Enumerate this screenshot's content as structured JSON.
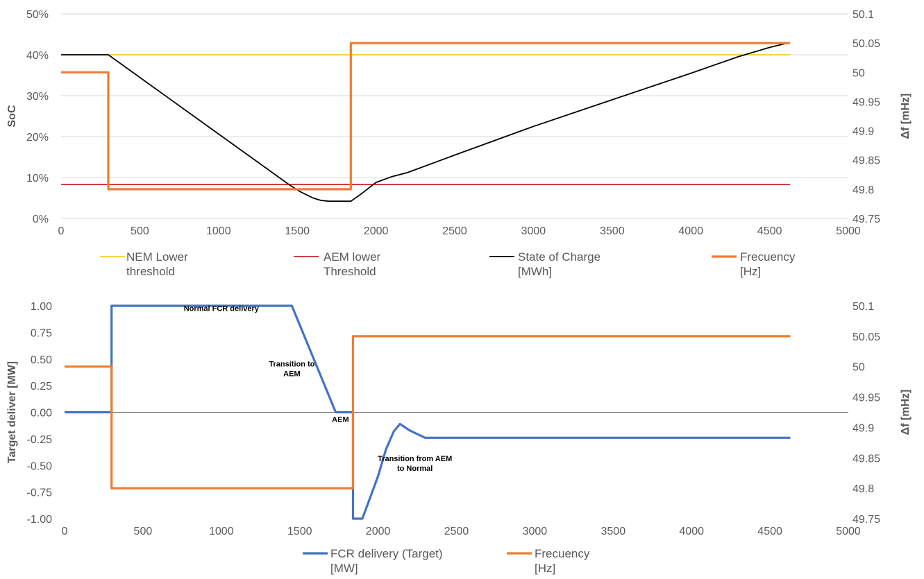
{
  "chart_data": [
    {
      "type": "line",
      "title": "",
      "ylabel": "SoC",
      "y2label": "Δf [mHz]",
      "xlim": [
        0,
        5000
      ],
      "xticks": [
        "0",
        "500",
        "1000",
        "1500",
        "2000",
        "2500",
        "3000",
        "3500",
        "4000",
        "4500",
        "5000"
      ],
      "ylim": [
        0,
        50
      ],
      "yticks": [
        "0%",
        "10%",
        "20%",
        "30%",
        "40%",
        "50%"
      ],
      "y2lim": [
        49.75,
        50.1
      ],
      "y2ticks": [
        "49.75",
        "49.8",
        "49.85",
        "49.9",
        "49.95",
        "50",
        "50.05",
        "50.1"
      ],
      "grid": true,
      "legend_position": "bottom",
      "series": [
        {
          "name": "NEM Lower threshold",
          "legend_lines": [
            "NEM Lower",
            "threshold"
          ],
          "color": "#ffc000",
          "axis": "left",
          "x": [
            0,
            4630
          ],
          "y": [
            40,
            40
          ]
        },
        {
          "name": "AEM lower Threshold",
          "legend_lines": [
            "AEM lower",
            "Threshold"
          ],
          "color": "#c00000",
          "axis": "left",
          "x": [
            0,
            4630
          ],
          "y": [
            8.3,
            8.3
          ]
        },
        {
          "name": "State of Charge [MWh]",
          "legend_lines": [
            "State of Charge",
            "[MWh]"
          ],
          "color": "#000000",
          "axis": "left",
          "x": [
            0,
            300,
            1450,
            1520,
            1600,
            1650,
            1700,
            1840,
            1900,
            2000,
            2100,
            2200,
            2500,
            3000,
            3500,
            4000,
            4300,
            4500,
            4630
          ],
          "y": [
            40,
            40,
            8.2,
            6.5,
            5.0,
            4.4,
            4.2,
            4.2,
            5.8,
            8.8,
            10.2,
            11.2,
            15.5,
            22.5,
            29.0,
            35.5,
            39.5,
            41.8,
            43.0
          ]
        },
        {
          "name": "Frecuency [Hz]",
          "legend_lines": [
            "Frecuency",
            "[Hz]"
          ],
          "color": "#ed7d31",
          "axis": "right",
          "x": [
            0,
            300,
            300,
            1840,
            1840,
            4630
          ],
          "y": [
            50.0,
            50.0,
            49.8,
            49.8,
            50.05,
            50.05
          ]
        }
      ]
    },
    {
      "type": "line",
      "title": "",
      "ylabel": "Target deliver [MW]",
      "y2label": "Δf [mHz]",
      "xlim": [
        0,
        5000
      ],
      "xticks": [
        "0",
        "500",
        "1000",
        "1500",
        "2000",
        "2500",
        "3000",
        "3500",
        "4000",
        "4500",
        "5000"
      ],
      "ylim": [
        -1,
        1
      ],
      "yticks": [
        "-1.00",
        "-0.75",
        "-0.50",
        "-0.25",
        "0.00",
        "0.25",
        "0.50",
        "0.75",
        "1.00"
      ],
      "y2lim": [
        49.75,
        50.1
      ],
      "y2ticks": [
        "49.75",
        "49.8",
        "49.85",
        "49.9",
        "49.95",
        "50",
        "50.05",
        "50.1"
      ],
      "grid": false,
      "legend_position": "bottom",
      "series": [
        {
          "name": "FCR delivery (Target) [MW]",
          "legend_lines": [
            "FCR delivery (Target)",
            "[MW]"
          ],
          "color": "#4472c4",
          "axis": "left",
          "x": [
            0,
            300,
            300,
            1450,
            1730,
            1840,
            1840,
            1900,
            2000,
            2050,
            2100,
            2140,
            2200,
            2300,
            2600,
            3000,
            4000,
            4630
          ],
          "y": [
            0,
            0,
            1,
            1,
            0,
            0,
            -1,
            -1,
            -0.6,
            -0.35,
            -0.18,
            -0.11,
            -0.17,
            -0.24,
            -0.24,
            -0.24,
            -0.24,
            -0.24
          ]
        },
        {
          "name": "Frecuency [Hz]",
          "legend_lines": [
            "Frecuency",
            "[Hz]"
          ],
          "color": "#ed7d31",
          "axis": "right",
          "x": [
            0,
            300,
            300,
            1840,
            1840,
            4630
          ],
          "y": [
            50.0,
            50.0,
            49.8,
            49.8,
            50.05,
            50.05
          ]
        }
      ],
      "annotations": [
        {
          "lines": [
            "Normal FCR delivery"
          ],
          "x": 1000,
          "y": 0.95
        },
        {
          "lines": [
            "Transition to",
            "AEM"
          ],
          "x": 1450,
          "y": 0.43
        },
        {
          "lines": [
            "AEM"
          ],
          "x": 1760,
          "y": -0.09
        },
        {
          "lines": [
            "Transition from AEM",
            "to Normal"
          ],
          "x": 2235,
          "y": -0.46
        }
      ]
    }
  ]
}
